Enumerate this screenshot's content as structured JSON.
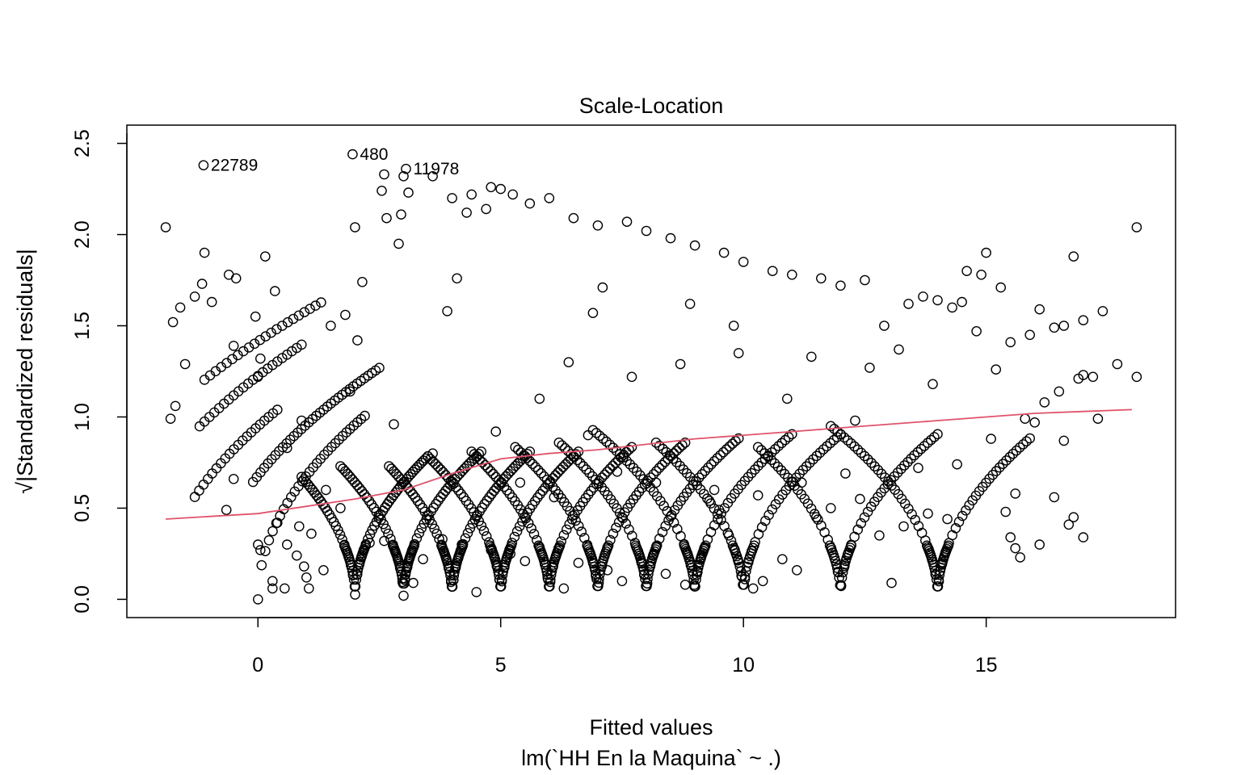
{
  "chart_data": {
    "type": "scatter",
    "title": "Scale-Location",
    "xlabel": "Fitted values",
    "subtitle": "lm(`HH En la Maquina` ~ .)",
    "ylabel": "√|Standardized residuals|",
    "xlim": [
      -2.7,
      18.9
    ],
    "ylim": [
      -0.1,
      2.6
    ],
    "x_ticks": [
      0,
      5,
      10,
      15
    ],
    "y_ticks": [
      0.0,
      0.5,
      1.0,
      1.5,
      2.0,
      2.5
    ],
    "x_tick_labels": [
      "0",
      "5",
      "10",
      "15"
    ],
    "y_tick_labels": [
      "0.0",
      "0.5",
      "1.0",
      "1.5",
      "2.0",
      "2.5"
    ],
    "grid": false,
    "point_color": "#000000",
    "smooth_color": "#DF536B",
    "smooth_line": [
      [
        -1.9,
        0.44
      ],
      [
        0,
        0.47
      ],
      [
        1,
        0.51
      ],
      [
        2,
        0.55
      ],
      [
        3,
        0.6
      ],
      [
        4,
        0.69
      ],
      [
        5,
        0.77
      ],
      [
        6,
        0.8
      ],
      [
        7,
        0.82
      ],
      [
        8,
        0.85
      ],
      [
        9,
        0.88
      ],
      [
        10,
        0.9
      ],
      [
        11,
        0.92
      ],
      [
        12,
        0.94
      ],
      [
        13,
        0.96
      ],
      [
        14,
        0.98
      ],
      [
        15,
        1.0
      ],
      [
        16,
        1.02
      ],
      [
        17,
        1.03
      ],
      [
        18,
        1.04
      ]
    ],
    "labeled_points": [
      {
        "label": "22789",
        "x": -1.12,
        "y": 2.38
      },
      {
        "label": "480",
        "x": 1.95,
        "y": 2.44
      },
      {
        "label": "11978",
        "x": 3.05,
        "y": 2.36
      }
    ],
    "points": [
      [
        -1.9,
        2.04
      ],
      [
        18.1,
        2.04
      ],
      [
        -1.75,
        1.52
      ],
      [
        -1.6,
        1.6
      ],
      [
        -1.5,
        1.29
      ],
      [
        -1.3,
        1.66
      ],
      [
        -1.15,
        1.73
      ],
      [
        -1.1,
        1.9
      ],
      [
        -0.95,
        1.63
      ],
      [
        -0.6,
        1.78
      ],
      [
        -0.45,
        1.76
      ],
      [
        -0.5,
        1.39
      ],
      [
        -0.5,
        0.66
      ],
      [
        -0.65,
        0.49
      ],
      [
        -0.05,
        1.55
      ],
      [
        0.15,
        1.88
      ],
      [
        0.35,
        1.69
      ],
      [
        0.05,
        1.32
      ],
      [
        0.0,
        1.22
      ],
      [
        0.0,
        0.3
      ],
      [
        0.05,
        0.27
      ],
      [
        0.4,
        0.42
      ],
      [
        0.3,
        0.1
      ],
      [
        0.3,
        0.06
      ],
      [
        0.55,
        0.06
      ],
      [
        0.6,
        0.3
      ],
      [
        0.8,
        0.24
      ],
      [
        0.85,
        0.4
      ],
      [
        0.95,
        0.18
      ],
      [
        1.0,
        0.12
      ],
      [
        1.05,
        0.06
      ],
      [
        1.1,
        0.36
      ],
      [
        1.35,
        0.16
      ],
      [
        -1.7,
        1.06
      ],
      [
        -1.8,
        0.99
      ],
      [
        1.8,
        1.56
      ],
      [
        1.5,
        1.5
      ],
      [
        2.05,
        1.42
      ],
      [
        2.0,
        2.04
      ],
      [
        2.15,
        1.74
      ],
      [
        2.6,
        2.33
      ],
      [
        2.55,
        2.24
      ],
      [
        2.65,
        2.09
      ],
      [
        3.1,
        2.23
      ],
      [
        3.0,
        2.32
      ],
      [
        2.95,
        2.11
      ],
      [
        2.9,
        1.95
      ],
      [
        3.6,
        2.32
      ],
      [
        4.0,
        2.2
      ],
      [
        4.3,
        2.12
      ],
      [
        4.4,
        2.22
      ],
      [
        4.7,
        2.14
      ],
      [
        4.8,
        2.26
      ],
      [
        5.0,
        2.25
      ],
      [
        5.25,
        2.22
      ],
      [
        5.6,
        2.17
      ],
      [
        6.0,
        2.2
      ],
      [
        6.5,
        2.09
      ],
      [
        7.0,
        2.05
      ],
      [
        7.6,
        2.07
      ],
      [
        8.0,
        2.02
      ],
      [
        8.5,
        1.98
      ],
      [
        9.0,
        1.94
      ],
      [
        9.6,
        1.9
      ],
      [
        10.0,
        1.85
      ],
      [
        10.6,
        1.8
      ],
      [
        11.0,
        1.78
      ],
      [
        11.6,
        1.76
      ],
      [
        12.0,
        1.72
      ],
      [
        12.5,
        1.75
      ],
      [
        13.4,
        1.62
      ],
      [
        13.7,
        1.66
      ],
      [
        14.0,
        1.64
      ],
      [
        14.3,
        1.6
      ],
      [
        14.5,
        1.63
      ],
      [
        14.6,
        1.8
      ],
      [
        14.9,
        1.78
      ],
      [
        15.0,
        1.9
      ],
      [
        15.3,
        1.71
      ],
      [
        16.1,
        1.59
      ],
      [
        15.9,
        1.45
      ],
      [
        16.4,
        1.49
      ],
      [
        16.6,
        1.5
      ],
      [
        16.8,
        1.88
      ],
      [
        17.0,
        1.53
      ],
      [
        17.4,
        1.58
      ],
      [
        17.7,
        1.29
      ],
      [
        18.1,
        1.22
      ],
      [
        17.0,
        1.23
      ],
      [
        17.2,
        1.22
      ],
      [
        16.5,
        1.14
      ],
      [
        16.2,
        1.08
      ],
      [
        16.0,
        0.97
      ],
      [
        16.4,
        0.56
      ],
      [
        16.1,
        0.3
      ],
      [
        16.8,
        0.45
      ],
      [
        16.7,
        0.41
      ],
      [
        17.0,
        0.34
      ],
      [
        15.6,
        0.28
      ],
      [
        15.7,
        0.23
      ],
      [
        15.5,
        0.34
      ],
      [
        15.4,
        0.48
      ],
      [
        15.6,
        0.58
      ],
      [
        14.2,
        0.44
      ],
      [
        13.8,
        0.47
      ],
      [
        13.3,
        0.4
      ],
      [
        12.8,
        0.35
      ],
      [
        12.4,
        0.55
      ],
      [
        11.5,
        0.45
      ],
      [
        11.8,
        0.5
      ],
      [
        13.05,
        0.09
      ],
      [
        11.1,
        0.16
      ],
      [
        10.8,
        0.22
      ],
      [
        10.4,
        0.1
      ],
      [
        10.2,
        0.06
      ],
      [
        9.7,
        0.35
      ],
      [
        9.5,
        0.49
      ],
      [
        9.3,
        0.54
      ],
      [
        8.8,
        0.08
      ],
      [
        8.4,
        0.14
      ],
      [
        7.9,
        0.2
      ],
      [
        7.5,
        0.1
      ],
      [
        7.2,
        0.16
      ],
      [
        6.6,
        0.2
      ],
      [
        6.3,
        0.06
      ],
      [
        5.5,
        0.21
      ],
      [
        5.2,
        0.25
      ],
      [
        4.8,
        0.27
      ],
      [
        4.5,
        0.04
      ],
      [
        4.2,
        0.3
      ],
      [
        3.8,
        0.33
      ],
      [
        3.4,
        0.22
      ],
      [
        3.2,
        0.09
      ],
      [
        2.6,
        0.32
      ],
      [
        2.3,
        0.31
      ],
      [
        1.4,
        0.6
      ],
      [
        1.7,
        0.5
      ],
      [
        6.8,
        0.9
      ],
      [
        7.4,
        0.7
      ],
      [
        8.2,
        0.64
      ],
      [
        9.4,
        0.6
      ],
      [
        10.3,
        0.57
      ],
      [
        11.2,
        0.64
      ],
      [
        12.1,
        0.69
      ],
      [
        13.6,
        0.72
      ],
      [
        14.4,
        0.74
      ],
      [
        15.1,
        0.88
      ],
      [
        15.8,
        0.99
      ],
      [
        16.6,
        0.87
      ],
      [
        17.3,
        0.99
      ],
      [
        6.4,
        1.3
      ],
      [
        5.8,
        1.1
      ],
      [
        7.7,
        1.22
      ],
      [
        8.7,
        1.29
      ],
      [
        9.9,
        1.35
      ],
      [
        11.4,
        1.33
      ],
      [
        12.6,
        1.27
      ],
      [
        13.9,
        1.18
      ],
      [
        15.2,
        1.26
      ],
      [
        4.9,
        0.92
      ],
      [
        5.4,
        0.64
      ],
      [
        6.1,
        0.56
      ],
      [
        3.6,
        0.8
      ],
      [
        2.8,
        0.96
      ],
      [
        1.9,
        1.14
      ],
      [
        0.9,
        0.98
      ],
      [
        0.6,
        0.83
      ],
      [
        13.2,
        1.37
      ],
      [
        12.9,
        1.5
      ],
      [
        15.5,
        1.41
      ],
      [
        14.8,
        1.47
      ],
      [
        16.9,
        1.21
      ],
      [
        10.9,
        1.1
      ],
      [
        12.3,
        0.98
      ],
      [
        7.1,
        1.71
      ],
      [
        6.9,
        1.57
      ],
      [
        8.9,
        1.62
      ],
      [
        9.8,
        1.5
      ],
      [
        4.1,
        1.76
      ],
      [
        3.9,
        1.58
      ]
    ],
    "cluster_points": [
      {
        "center": 2,
        "count": 30,
        "decay": 0.5
      },
      {
        "center": 3,
        "count": 35,
        "decay": 0.5
      },
      {
        "center": 4,
        "count": 32,
        "decay": 0.5
      },
      {
        "center": 5,
        "count": 30,
        "decay": 0.5
      },
      {
        "center": 6,
        "count": 30,
        "decay": 0.5
      },
      {
        "center": 7,
        "count": 28,
        "decay": 0.5
      },
      {
        "center": 8,
        "count": 28,
        "decay": 0.5
      },
      {
        "center": 9,
        "count": 30,
        "decay": 0.5
      },
      {
        "center": 10,
        "count": 22,
        "decay": 0.5
      },
      {
        "center": 12,
        "count": 24,
        "decay": 0.5
      },
      {
        "center": 14,
        "count": 30,
        "decay": 0.5
      }
    ],
    "curve_families": [
      {
        "center": 2,
        "x_from": 0.9,
        "x_to": 3.5,
        "slope": 0.41,
        "count": 60
      },
      {
        "center": 3,
        "x_from": 1.7,
        "x_to": 4.6,
        "slope": 0.41,
        "count": 60
      },
      {
        "center": 4,
        "x_from": 2.7,
        "x_to": 5.6,
        "slope": 0.41,
        "count": 60
      },
      {
        "center": 5,
        "x_from": 3.5,
        "x_to": 6.6,
        "slope": 0.41,
        "count": 60
      },
      {
        "center": 6,
        "x_from": 4.4,
        "x_to": 7.7,
        "slope": 0.41,
        "count": 60
      },
      {
        "center": 7,
        "x_from": 5.3,
        "x_to": 8.8,
        "slope": 0.41,
        "count": 60
      },
      {
        "center": 8,
        "x_from": 6.2,
        "x_to": 9.9,
        "slope": 0.41,
        "count": 60
      },
      {
        "center": 9,
        "x_from": 6.9,
        "x_to": 11.0,
        "slope": 0.41,
        "count": 60
      },
      {
        "center": 10,
        "x_from": 8.2,
        "x_to": 12.0,
        "slope": 0.41,
        "count": 55
      },
      {
        "center": 12,
        "x_from": 10.3,
        "x_to": 14.0,
        "slope": 0.41,
        "count": 55
      },
      {
        "center": 14,
        "x_from": 11.8,
        "x_to": 15.9,
        "slope": 0.41,
        "count": 60
      },
      {
        "center": -2,
        "x_from": -1.3,
        "x_to": 0.4,
        "slope": 0.45,
        "count": 20
      },
      {
        "center": -3,
        "x_from": -1.2,
        "x_to": 0.9,
        "slope": 0.5,
        "count": 22
      },
      {
        "center": -4,
        "x_from": -1.1,
        "x_to": 1.3,
        "slope": 0.5,
        "count": 22
      },
      {
        "center": 0,
        "x_from": 0.0,
        "x_to": 2.2,
        "slope": 0.46,
        "count": 30
      },
      {
        "center": -1,
        "x_from": -0.1,
        "x_to": 2.5,
        "slope": 0.46,
        "count": 35
      }
    ]
  }
}
